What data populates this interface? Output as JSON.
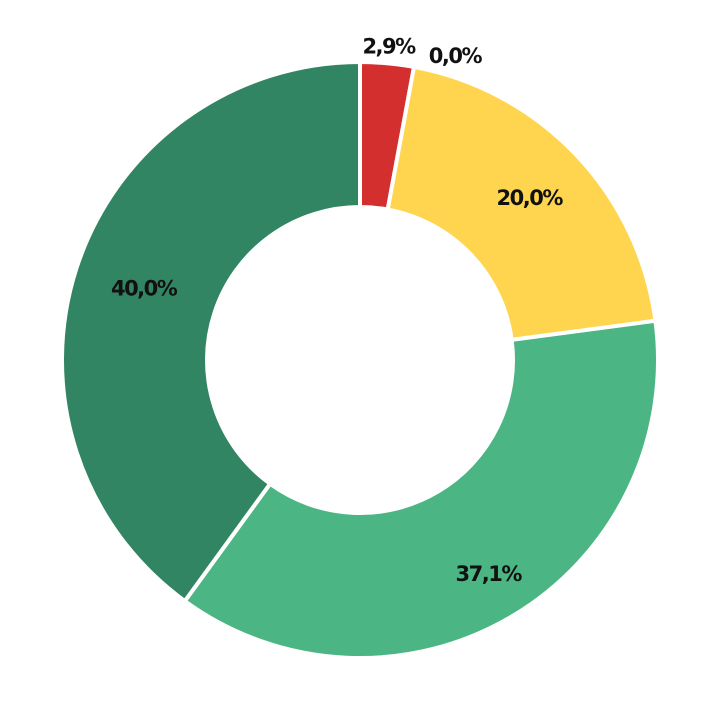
{
  "chart_data": {
    "type": "pie",
    "donut": true,
    "slices": [
      {
        "label": "2,9%",
        "value": 2.9,
        "color": "#d32f2f"
      },
      {
        "label": "0,0%",
        "value": 0.0,
        "color": "#e8e8e8"
      },
      {
        "label": "20,0%",
        "value": 20.0,
        "color": "#ffd54f"
      },
      {
        "label": "37,1%",
        "value": 37.1,
        "color": "#4bb584"
      },
      {
        "label": "40,0%",
        "value": 40.0,
        "color": "#328563"
      }
    ],
    "start_angle_deg": 0,
    "direction": "clockwise",
    "legend": "none"
  }
}
